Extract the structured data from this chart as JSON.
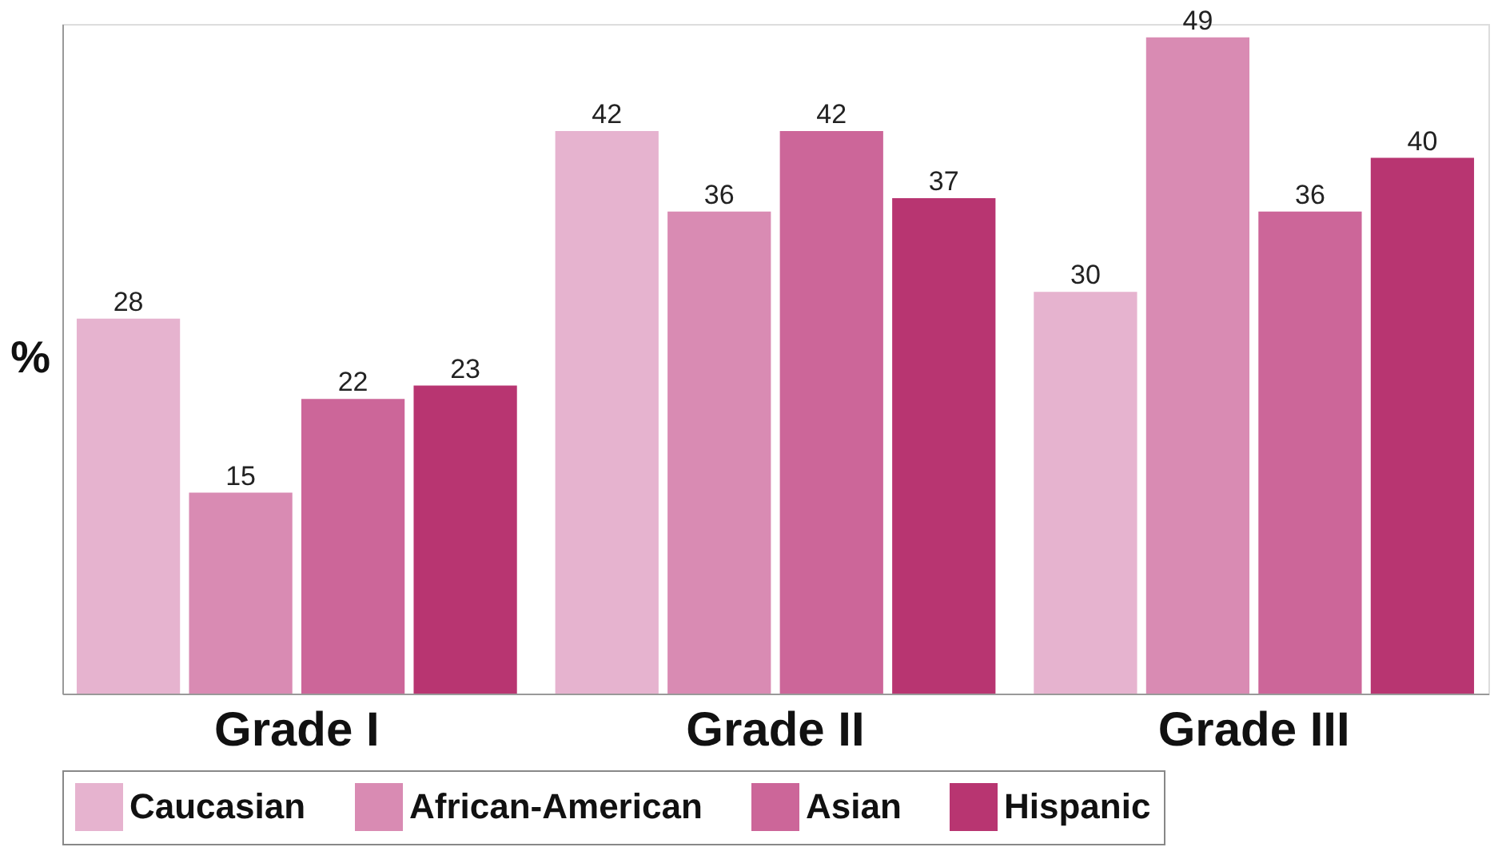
{
  "chart_data": {
    "type": "bar",
    "ylabel": "%",
    "categories": [
      "Grade I",
      "Grade II",
      "Grade III"
    ],
    "series": [
      {
        "name": "Caucasian",
        "color": "#e6b3cf",
        "values": [
          28,
          42,
          30
        ]
      },
      {
        "name": "African-American",
        "color": "#d98bb3",
        "values": [
          15,
          36,
          49
        ]
      },
      {
        "name": "Asian",
        "color": "#cc6699",
        "values": [
          22,
          42,
          36
        ]
      },
      {
        "name": "Hispanic",
        "color": "#b83571",
        "values": [
          23,
          37,
          40
        ]
      }
    ],
    "ylim": [
      0,
      50
    ],
    "data_labels": true,
    "legend": "bottom",
    "grid": false,
    "tick_labels": "x"
  }
}
